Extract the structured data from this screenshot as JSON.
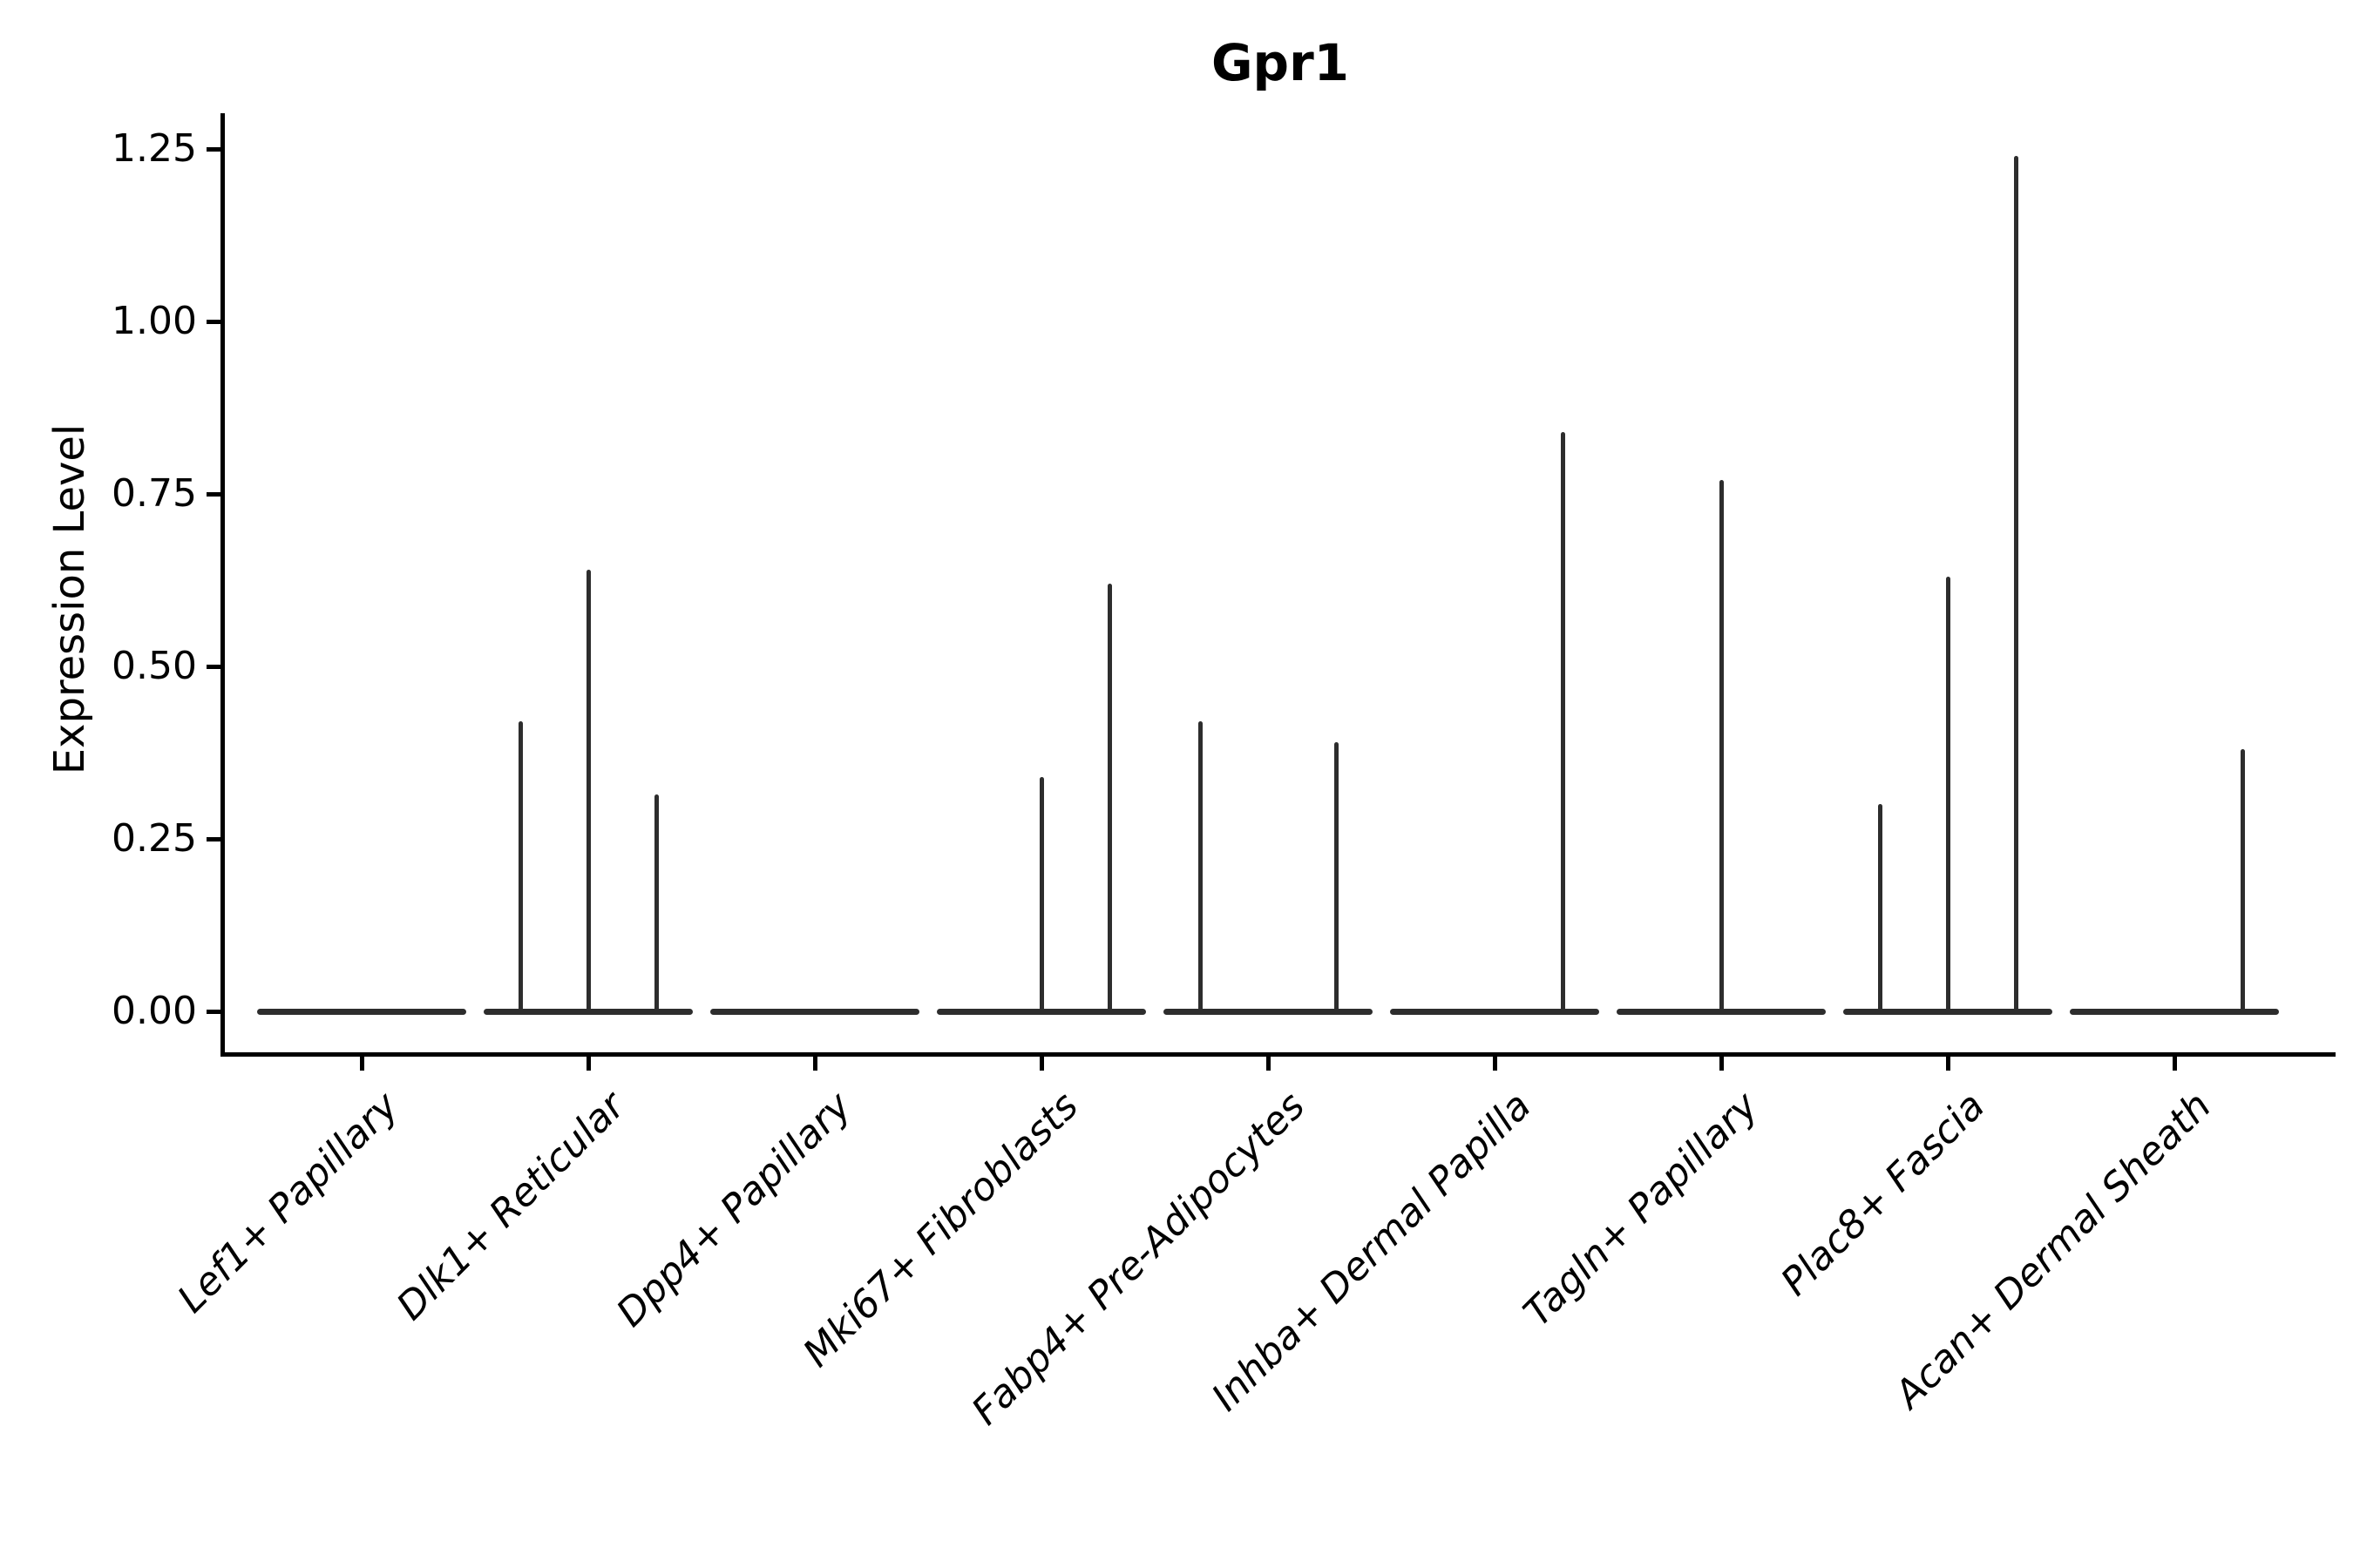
{
  "title": "Gpr1",
  "y_axis": {
    "label": "Expression Level",
    "tick_labels": [
      "1.25",
      "1.00",
      "0.75",
      "0.50",
      "0.25",
      "0.00"
    ],
    "tick_values": [
      1.25,
      1.0,
      0.75,
      0.5,
      0.25,
      0.0
    ]
  },
  "x_axis": {
    "categories": [
      "Lef1+ Papillary",
      "Dlk1+ Reticular",
      "Dpp4+ Papillary",
      "Mki67+ Fibroblasts",
      "Fabp4+ Pre-Adipocytes",
      "Inhba+ Dermal Papilla",
      "Tagln+ Papillary",
      "Plac8+ Fascia",
      "Acan+ Dermal Sheath"
    ]
  },
  "chart_data": {
    "type": "violin",
    "title": "Gpr1",
    "xlabel": "",
    "ylabel": "Expression Level",
    "ylim": [
      -0.06,
      1.3
    ],
    "y_ticks": [
      0,
      0.25,
      0.5,
      0.75,
      1.0,
      1.25
    ],
    "grid": false,
    "legend": false,
    "categories": [
      "Lef1+ Papillary",
      "Dlk1+ Reticular",
      "Dpp4+ Papillary",
      "Mki67+ Fibroblasts",
      "Fabp4+ Pre-Adipocytes",
      "Inhba+ Dermal Papilla",
      "Tagln+ Papillary",
      "Plac8+ Fascia",
      "Acan+ Dermal Sheath"
    ],
    "violins": [
      {
        "category": "Lef1+ Papillary",
        "baseline_value": 0,
        "spikes": []
      },
      {
        "category": "Dlk1+ Reticular",
        "baseline_value": 0,
        "spikes": [
          {
            "pos": -0.3,
            "max": 0.42
          },
          {
            "pos": 0.0,
            "max": 0.64
          },
          {
            "pos": 0.3,
            "max": 0.315
          }
        ]
      },
      {
        "category": "Dpp4+ Papillary",
        "baseline_value": 0,
        "spikes": []
      },
      {
        "category": "Mki67+ Fibroblasts",
        "baseline_value": 0,
        "spikes": [
          {
            "pos": 0.0,
            "max": 0.34
          },
          {
            "pos": 0.3,
            "max": 0.62
          }
        ]
      },
      {
        "category": "Fabp4+ Pre-Adipocytes",
        "baseline_value": 0,
        "spikes": [
          {
            "pos": -0.3,
            "max": 0.42
          },
          {
            "pos": 0.3,
            "max": 0.39
          }
        ]
      },
      {
        "category": "Inhba+ Dermal Papilla",
        "baseline_value": 0,
        "spikes": [
          {
            "pos": 0.3,
            "max": 0.84
          }
        ]
      },
      {
        "category": "Tagln+ Papillary",
        "baseline_value": 0,
        "spikes": [
          {
            "pos": 0.0,
            "max": 0.77
          }
        ]
      },
      {
        "category": "Plac8+ Fascia",
        "baseline_value": 0,
        "spikes": [
          {
            "pos": -0.3,
            "max": 0.3
          },
          {
            "pos": 0.0,
            "max": 0.63
          },
          {
            "pos": 0.3,
            "max": 1.24
          }
        ]
      },
      {
        "category": "Acan+ Dermal Sheath",
        "baseline_value": 0,
        "spikes": [
          {
            "pos": 0.3,
            "max": 0.38
          }
        ]
      }
    ],
    "style": {
      "stroke_color": "#2d2d2d",
      "axis_color": "#000000",
      "text_color": "#000000",
      "background": "#ffffff",
      "violin_width_frac": 0.92
    }
  }
}
